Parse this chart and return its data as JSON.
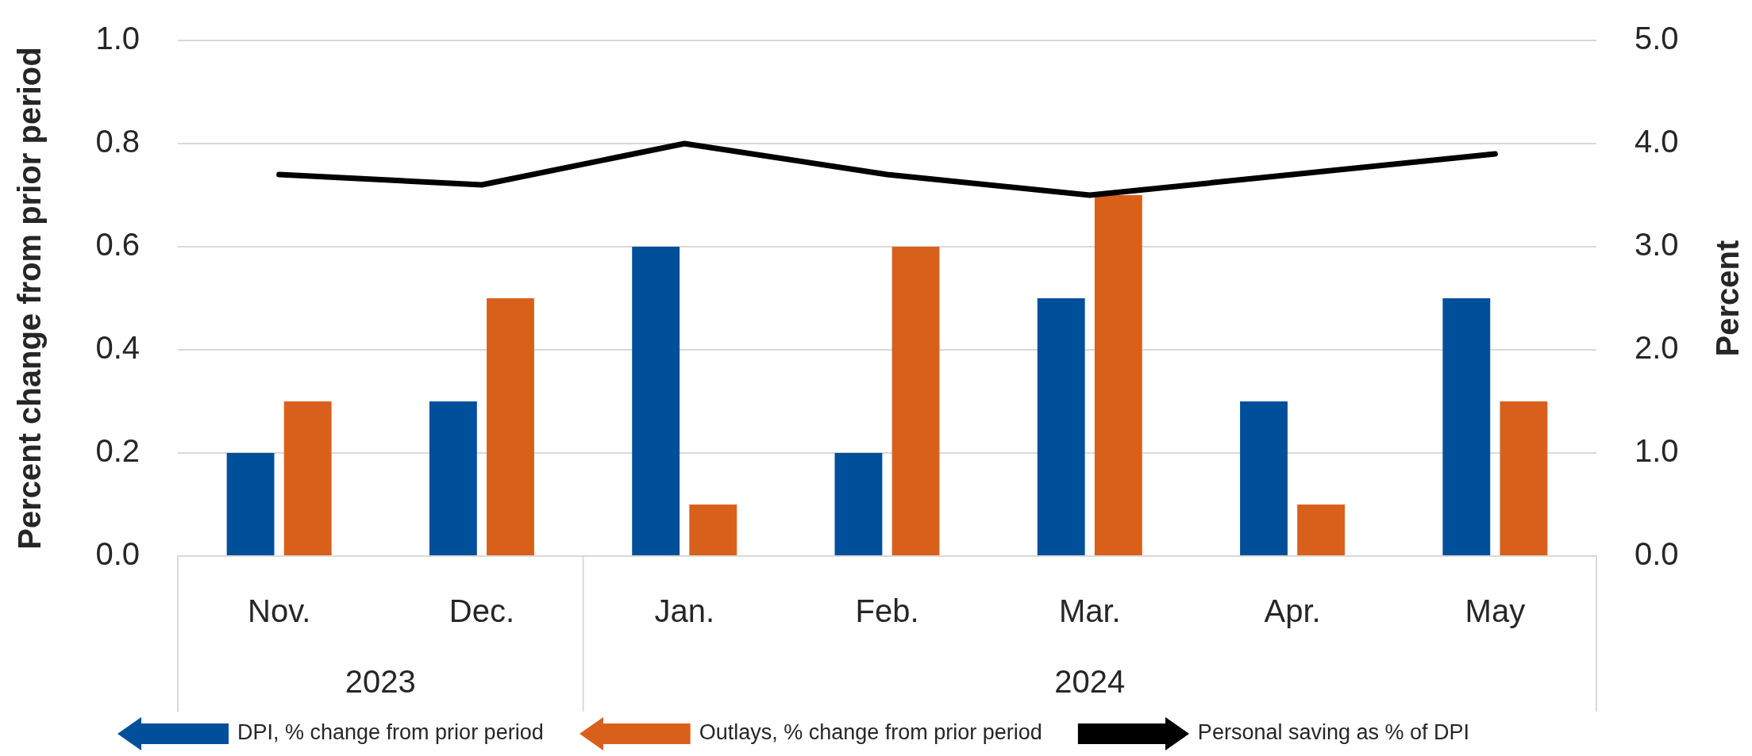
{
  "chart_data": {
    "type": "bar",
    "categories": [
      "Nov.",
      "Dec.",
      "Jan.",
      "Feb.",
      "Mar.",
      "Apr.",
      "May"
    ],
    "series": [
      {
        "name": "DPI, % change from prior period",
        "color": "#004f9a",
        "values": [
          0.2,
          0.3,
          0.6,
          0.2,
          0.5,
          0.3,
          0.5
        ]
      },
      {
        "name": "Outlays, % change from prior period",
        "color": "#d9601b",
        "values": [
          0.3,
          0.5,
          0.1,
          0.6,
          0.7,
          0.1,
          0.3
        ]
      },
      {
        "name": "Personal saving as % of DPI",
        "type": "line",
        "axis": "y2",
        "color": "#000000",
        "values": [
          3.7,
          3.6,
          4.0,
          3.7,
          3.5,
          3.7,
          3.9
        ]
      }
    ],
    "ylabel": "Percent change from prior period",
    "y2label": "Percent",
    "ylim": [
      0,
      1
    ],
    "yticks": [
      {
        "value": 0,
        "label": "0.0"
      },
      {
        "value": 0.2,
        "label": "0.2"
      },
      {
        "value": 0.4,
        "label": "0.4"
      },
      {
        "value": 0.6,
        "label": "0.6"
      },
      {
        "value": 0.8,
        "label": "0.8"
      },
      {
        "value": 1,
        "label": "1.0"
      }
    ],
    "y2lim": [
      0,
      5
    ],
    "y2ticks": [
      {
        "value": 0,
        "label": "0.0"
      },
      {
        "value": 1,
        "label": "1.0"
      },
      {
        "value": 2,
        "label": "2.0"
      },
      {
        "value": 3,
        "label": "3.0"
      },
      {
        "value": 4,
        "label": "4.0"
      },
      {
        "value": 5,
        "label": "5.0"
      }
    ],
    "annotations": [
      "2023",
      "2024"
    ],
    "grid": "y",
    "legend": "bottom"
  }
}
